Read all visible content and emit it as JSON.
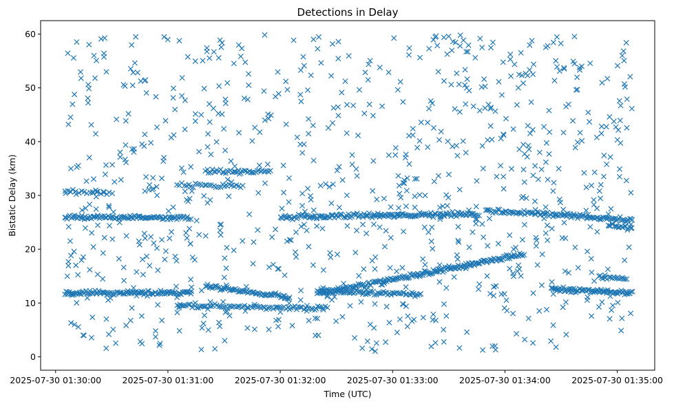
{
  "chart_data": {
    "type": "scatter",
    "title": "Detections in Delay",
    "xlabel": "Time (UTC)",
    "ylabel": "Bistatic Delay (km)",
    "x_unit": "time",
    "x_ticks": [
      "2025-07-30 01:30:00",
      "2025-07-30 01:31:00",
      "2025-07-30 01:32:00",
      "2025-07-30 01:33:00",
      "2025-07-30 01:34:00",
      "2025-07-30 01:35:00"
    ],
    "xlim": [
      "2025-07-30 01:29:52",
      "2025-07-30 01:35:20"
    ],
    "ylim": [
      -2.5,
      62.5
    ],
    "y_ticks": [
      0,
      10,
      20,
      30,
      40,
      50,
      60
    ],
    "grid": false,
    "marker": "x",
    "color": "#1f77b4",
    "series": [
      {
        "tracks": [
          {
            "t_start": "2025-07-30 01:30:05",
            "t_end": "2025-07-30 01:31:12",
            "delay_start": 11.8,
            "delay_end": 12.0,
            "n": 110
          },
          {
            "t_start": "2025-07-30 01:31:20",
            "t_end": "2025-07-30 01:32:05",
            "delay_start": 13.2,
            "delay_end": 11.0,
            "n": 70
          },
          {
            "t_start": "2025-07-30 01:31:05",
            "t_end": "2025-07-30 01:32:25",
            "delay_start": 9.5,
            "delay_end": 9.0,
            "n": 85
          },
          {
            "t_start": "2025-07-30 01:32:20",
            "t_end": "2025-07-30 01:34:10",
            "delay_start": 11.7,
            "delay_end": 19.0,
            "n": 190
          },
          {
            "t_start": "2025-07-30 01:32:20",
            "t_end": "2025-07-30 01:33:15",
            "delay_start": 12.2,
            "delay_end": 11.6,
            "n": 70
          },
          {
            "t_start": "2025-07-30 01:34:25",
            "t_end": "2025-07-30 01:35:08",
            "delay_start": 12.5,
            "delay_end": 11.9,
            "n": 80
          },
          {
            "t_start": "2025-07-30 01:30:05",
            "t_end": "2025-07-30 01:31:12",
            "delay_start": 26.0,
            "delay_end": 25.8,
            "n": 100
          },
          {
            "t_start": "2025-07-30 01:32:00",
            "t_end": "2025-07-30 01:33:45",
            "delay_start": 26.0,
            "delay_end": 26.5,
            "n": 160
          },
          {
            "t_start": "2025-07-30 01:33:50",
            "t_end": "2025-07-30 01:35:08",
            "delay_start": 27.2,
            "delay_end": 25.5,
            "n": 110
          },
          {
            "t_start": "2025-07-30 01:31:20",
            "t_end": "2025-07-30 01:31:55",
            "delay_start": 34.5,
            "delay_end": 34.5,
            "n": 40
          },
          {
            "t_start": "2025-07-30 01:30:05",
            "t_end": "2025-07-30 01:30:30",
            "delay_start": 30.8,
            "delay_end": 30.5,
            "n": 18
          },
          {
            "t_start": "2025-07-30 01:31:05",
            "t_end": "2025-07-30 01:31:40",
            "delay_start": 32.0,
            "delay_end": 31.8,
            "n": 30
          },
          {
            "t_start": "2025-07-30 01:34:55",
            "t_end": "2025-07-30 01:35:08",
            "delay_start": 24.5,
            "delay_end": 24.0,
            "n": 20
          },
          {
            "t_start": "2025-07-30 01:34:50",
            "t_end": "2025-07-30 01:35:05",
            "delay_start": 14.8,
            "delay_end": 14.6,
            "n": 20
          }
        ],
        "clutter": {
          "t_start": "2025-07-30 01:30:05",
          "t_end": "2025-07-30 01:35:08",
          "delay_min": 1,
          "delay_max": 60,
          "n": 900
        }
      }
    ]
  }
}
